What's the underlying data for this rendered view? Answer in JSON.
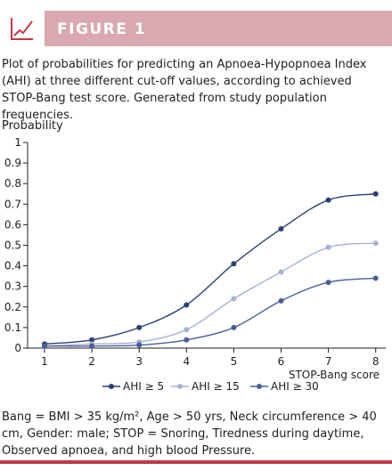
{
  "figure": {
    "label": "FIGURE 1",
    "caption": "Plot of probabilities for predicting an Apnoea-Hypopnoea Index (AHI) at three different cut-off values, according to achieved STOP-Bang test score. Generated from study population frequencies.",
    "footnote": "Bang = BMI > 35 kg/m², Age > 50 yrs, Neck circumference > 40 cm, Gender: male; STOP = Snoring, Tiredness during daytime, Observed apnoea, and high blood Pressure.",
    "icon": "line-chart-icon",
    "accent_color": "#c13949",
    "header_color": "#d9a8b1"
  },
  "chart_data": {
    "type": "line",
    "ylabel": "Probability",
    "xlabel": "STOP-Bang score",
    "x": [
      1,
      2,
      3,
      4,
      5,
      6,
      7,
      8
    ],
    "xticks": [
      "1",
      "2",
      "3",
      "4",
      "5",
      "6",
      "7",
      "8"
    ],
    "yticks": [
      "0",
      "0.1",
      "0.2",
      "0.3",
      "0.4",
      "0.5",
      "0.6",
      "0.7",
      "0.8",
      "0.9",
      "1"
    ],
    "ylim": [
      0,
      1
    ],
    "xlim": [
      0.7,
      8.3
    ],
    "grid": false,
    "legend_position": "bottom",
    "series": [
      {
        "name": "AHI ≥ 5",
        "color": "#2d3f73",
        "values": [
          0.02,
          0.04,
          0.1,
          0.21,
          0.41,
          0.58,
          0.72,
          0.75
        ]
      },
      {
        "name": "AHI ≥ 15",
        "color": "#a7b1d0",
        "values": [
          0.01,
          0.02,
          0.03,
          0.09,
          0.24,
          0.37,
          0.49,
          0.51
        ]
      },
      {
        "name": "AHI ≥ 30",
        "color": "#4a5e96",
        "values": [
          0.01,
          0.01,
          0.015,
          0.04,
          0.1,
          0.23,
          0.32,
          0.34
        ]
      }
    ]
  }
}
